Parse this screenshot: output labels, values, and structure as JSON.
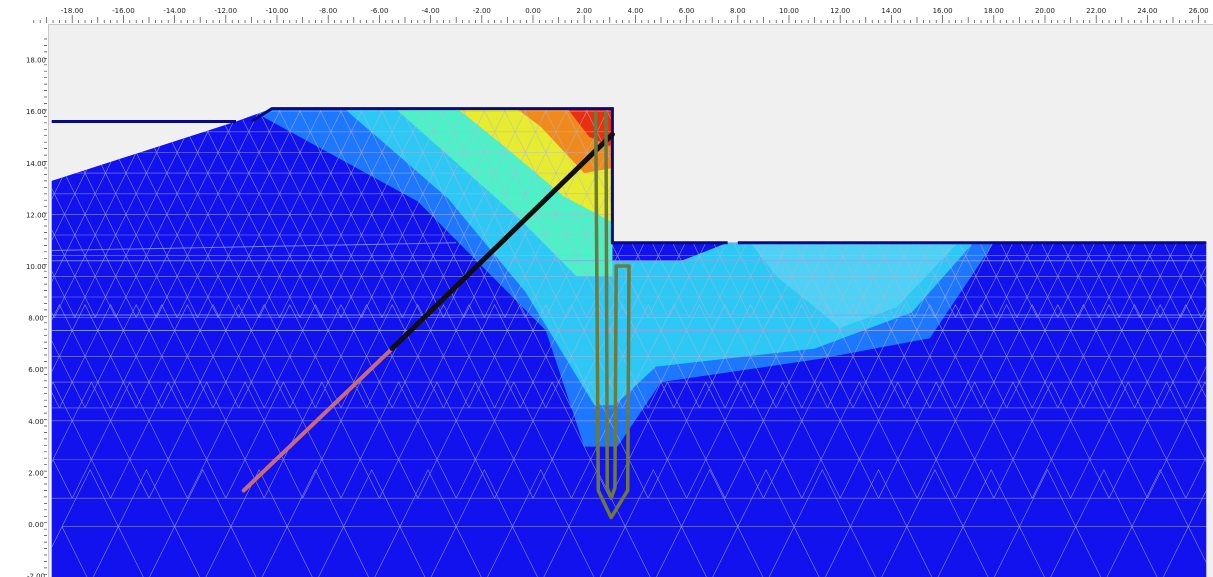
{
  "view": {
    "x_axis": {
      "unit": "m",
      "tick_labels": [
        "-18.00",
        "-16.00",
        "-14.00",
        "-12.00",
        "-10.00",
        "-8.00",
        "-6.00",
        "-4.00",
        "-2.00",
        "0.00",
        "2.00",
        "4.00",
        "6.00",
        "8.00",
        "10.00",
        "12.00",
        "14.00",
        "16.00",
        "18.00",
        "20.00",
        "22.00",
        "24.00",
        "26.00"
      ],
      "tick_values": [
        -18,
        -16,
        -14,
        -12,
        -10,
        -8,
        -6,
        -4,
        -2,
        0,
        2,
        4,
        6,
        8,
        10,
        12,
        14,
        16,
        18,
        20,
        22,
        24,
        26
      ],
      "range": [
        -19.5,
        26.3
      ]
    },
    "y_axis": {
      "unit": "m",
      "tick_labels": [
        "18.00",
        "16.00",
        "14.00",
        "12.00",
        "10.00",
        "8.00",
        "6.00",
        "4.00",
        "2.00",
        "0.00",
        "-2.00"
      ],
      "tick_values": [
        18,
        16,
        14,
        12,
        10,
        8,
        6,
        4,
        2,
        0,
        -2
      ],
      "range": [
        -2.2,
        19.0
      ]
    },
    "colors": {
      "background": "#f0f0f0",
      "soil_base": "#1212ee",
      "contour_band_1": "#1e78ff",
      "contour_band_2": "#2ec8f5",
      "contour_band_3": "#4ef0c8",
      "contour_band_4": "#e8ec30",
      "contour_band_5": "#f08a1c",
      "contour_band_6": "#e83010",
      "mesh_lines": "#b0b4d8",
      "ground_line": "#0a0a80",
      "anchor_free": "#101010",
      "anchor_grout": "#c86a7a",
      "diaphragm_wall": "#6e7a3c"
    },
    "model": {
      "description": "finite element mesh with shading contours",
      "ground_left_level": 16.0,
      "excavation_level": 10.9,
      "wall_toe_level": 0.2
    }
  }
}
